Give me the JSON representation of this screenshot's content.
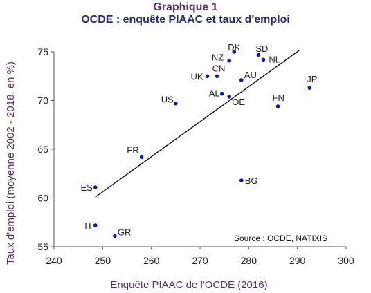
{
  "chart_data": {
    "type": "scatter",
    "title": "Graphique 1",
    "subtitle": "OCDE : enquête PIAAC et taux d'emploi",
    "xlabel": "Enquête PIAAC de l'OCDE (2016)",
    "ylabel": "Taux d'emploi (moyenne 2002 - 2018, en %)",
    "xlim": [
      240,
      300
    ],
    "ylim": [
      55,
      75
    ],
    "xticks": [
      "240",
      "250",
      "260",
      "270",
      "280",
      "290",
      "300"
    ],
    "yticks": [
      "55",
      "60",
      "65",
      "70",
      "75"
    ],
    "grid": false,
    "point_color": "#0a16c8",
    "points": [
      {
        "label": "DK",
        "x": 277.0,
        "y": 75.0
      },
      {
        "label": "SD",
        "x": 282.0,
        "y": 74.7
      },
      {
        "label": "NZ",
        "x": 276.0,
        "y": 74.1
      },
      {
        "label": "NL",
        "x": 283.0,
        "y": 74.2
      },
      {
        "label": "UK",
        "x": 271.5,
        "y": 72.5
      },
      {
        "label": "CN",
        "x": 273.5,
        "y": 72.5
      },
      {
        "label": "AU",
        "x": 278.5,
        "y": 72.1
      },
      {
        "label": "JP",
        "x": 292.5,
        "y": 71.3
      },
      {
        "label": "AL",
        "x": 274.5,
        "y": 70.7
      },
      {
        "label": "OE",
        "x": 276.0,
        "y": 70.4
      },
      {
        "label": "US",
        "x": 265.0,
        "y": 69.7
      },
      {
        "label": "FN",
        "x": 286.0,
        "y": 69.4
      },
      {
        "label": "FR",
        "x": 258.0,
        "y": 64.2
      },
      {
        "label": "ES",
        "x": 248.5,
        "y": 61.1
      },
      {
        "label": "BG",
        "x": 278.5,
        "y": 61.8
      },
      {
        "label": "IT",
        "x": 248.5,
        "y": 57.2
      },
      {
        "label": "GR",
        "x": 252.5,
        "y": 56.1
      }
    ],
    "trendline": {
      "x": [
        248.5,
        290.5
      ],
      "y": [
        60.1,
        75.2
      ]
    },
    "annotation": "Source : OCDE, NATIXIS"
  }
}
